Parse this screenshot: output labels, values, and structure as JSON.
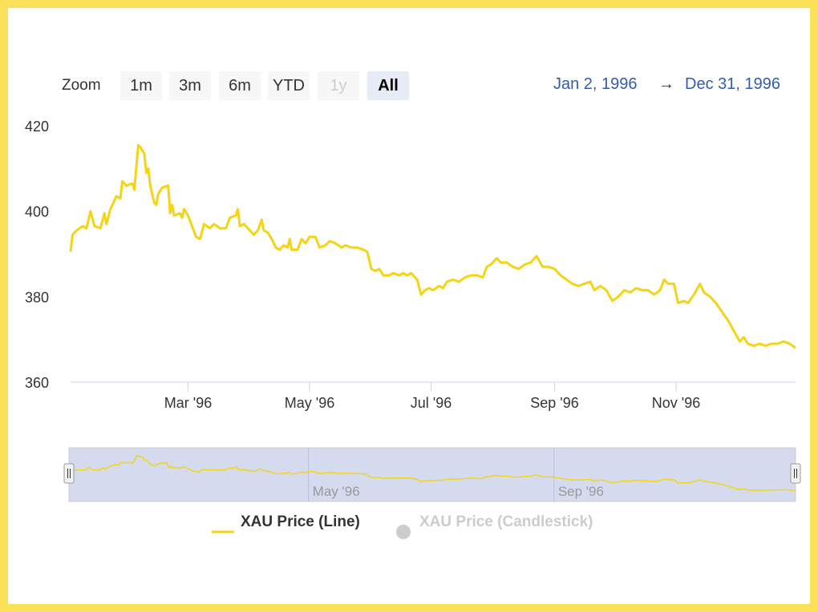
{
  "colors": {
    "line": "#f5d415",
    "axis": "#ccd6eb",
    "navigator_mask": "#d5dbee",
    "range_text": "#335cad",
    "legend_inactive": "#cccccc"
  },
  "range_selector": {
    "zoom_label": "Zoom",
    "buttons": [
      {
        "label": "1m",
        "state": "normal"
      },
      {
        "label": "3m",
        "state": "normal"
      },
      {
        "label": "6m",
        "state": "normal"
      },
      {
        "label": "YTD",
        "state": "normal"
      },
      {
        "label": "1y",
        "state": "disabled"
      },
      {
        "label": "All",
        "state": "active"
      }
    ],
    "from": "Jan 2, 1996",
    "arrow": "→",
    "to": "Dec 31, 1996"
  },
  "legend": [
    {
      "name": "XAU Price (Line)",
      "active": true,
      "symbol": "line"
    },
    {
      "name": "XAU Price (Candlestick)",
      "active": false,
      "symbol": "circle"
    }
  ],
  "navigator": {
    "tick_labels": [
      "May '96",
      "Sep '96"
    ]
  },
  "chart_data": {
    "type": "line",
    "xlim": [
      "1996-01-02",
      "1996-12-31"
    ],
    "ylim": [
      360,
      420
    ],
    "yticks": [
      360,
      380,
      400,
      420
    ],
    "xticks": [
      {
        "date": "1996-03-01",
        "label": "Mar '96"
      },
      {
        "date": "1996-05-01",
        "label": "May '96"
      },
      {
        "date": "1996-07-01",
        "label": "Jul '96"
      },
      {
        "date": "1996-09-01",
        "label": "Sep '96"
      },
      {
        "date": "1996-11-01",
        "label": "Nov '96"
      }
    ],
    "legend_position": "bottom",
    "series": [
      {
        "name": "XAU Price (Line)",
        "points": [
          [
            "1996-01-02",
            390.5
          ],
          [
            "1996-01-03",
            394.5
          ],
          [
            "1996-01-05",
            395.5
          ],
          [
            "1996-01-08",
            396.5
          ],
          [
            "1996-01-10",
            396.0
          ],
          [
            "1996-01-12",
            400.0
          ],
          [
            "1996-01-14",
            396.5
          ],
          [
            "1996-01-17",
            396.0
          ],
          [
            "1996-01-19",
            399.5
          ],
          [
            "1996-01-20",
            397.0
          ],
          [
            "1996-01-22",
            400.5
          ],
          [
            "1996-01-25",
            403.5
          ],
          [
            "1996-01-27",
            403.0
          ],
          [
            "1996-01-28",
            407.0
          ],
          [
            "1996-01-30",
            406.0
          ],
          [
            "1996-02-02",
            406.5
          ],
          [
            "1996-02-03",
            405.0
          ],
          [
            "1996-02-05",
            415.5
          ],
          [
            "1996-02-06",
            415.0
          ],
          [
            "1996-02-08",
            413.5
          ],
          [
            "1996-02-09",
            409.0
          ],
          [
            "1996-02-10",
            410.0
          ],
          [
            "1996-02-11",
            406.0
          ],
          [
            "1996-02-13",
            402.0
          ],
          [
            "1996-02-14",
            401.5
          ],
          [
            "1996-02-15",
            404.0
          ],
          [
            "1996-02-17",
            405.5
          ],
          [
            "1996-02-20",
            406.0
          ],
          [
            "1996-02-21",
            399.5
          ],
          [
            "1996-02-22",
            401.5
          ],
          [
            "1996-02-23",
            399.0
          ],
          [
            "1996-02-26",
            399.5
          ],
          [
            "1996-02-27",
            398.5
          ],
          [
            "1996-02-28",
            400.5
          ],
          [
            "1996-03-01",
            399.0
          ],
          [
            "1996-03-03",
            396.5
          ],
          [
            "1996-03-05",
            394.0
          ],
          [
            "1996-03-07",
            393.5
          ],
          [
            "1996-03-09",
            397.0
          ],
          [
            "1996-03-12",
            396.0
          ],
          [
            "1996-03-14",
            397.0
          ],
          [
            "1996-03-17",
            396.0
          ],
          [
            "1996-03-20",
            396.0
          ],
          [
            "1996-03-22",
            398.5
          ],
          [
            "1996-03-25",
            399.0
          ],
          [
            "1996-03-26",
            400.5
          ],
          [
            "1996-03-27",
            396.5
          ],
          [
            "1996-03-29",
            397.0
          ],
          [
            "1996-04-01",
            395.5
          ],
          [
            "1996-04-03",
            394.5
          ],
          [
            "1996-04-05",
            395.5
          ],
          [
            "1996-04-07",
            398.0
          ],
          [
            "1996-04-08",
            395.5
          ],
          [
            "1996-04-10",
            395.0
          ],
          [
            "1996-04-12",
            393.5
          ],
          [
            "1996-04-14",
            391.5
          ],
          [
            "1996-04-16",
            391.0
          ],
          [
            "1996-04-18",
            392.0
          ],
          [
            "1996-04-20",
            391.5
          ],
          [
            "1996-04-21",
            393.5
          ],
          [
            "1996-04-22",
            391.0
          ],
          [
            "1996-04-25",
            391.0
          ],
          [
            "1996-04-27",
            393.5
          ],
          [
            "1996-04-29",
            392.5
          ],
          [
            "1996-05-01",
            394.0
          ],
          [
            "1996-05-04",
            394.0
          ],
          [
            "1996-05-06",
            391.5
          ],
          [
            "1996-05-09",
            392.0
          ],
          [
            "1996-05-11",
            393.0
          ],
          [
            "1996-05-14",
            392.5
          ],
          [
            "1996-05-17",
            391.5
          ],
          [
            "1996-05-19",
            392.0
          ],
          [
            "1996-05-22",
            391.5
          ],
          [
            "1996-05-25",
            391.5
          ],
          [
            "1996-05-28",
            391.0
          ],
          [
            "1996-05-30",
            390.5
          ],
          [
            "1996-06-01",
            386.5
          ],
          [
            "1996-06-03",
            386.0
          ],
          [
            "1996-06-05",
            386.5
          ],
          [
            "1996-06-07",
            385.0
          ],
          [
            "1996-06-10",
            385.0
          ],
          [
            "1996-06-12",
            385.5
          ],
          [
            "1996-06-15",
            385.0
          ],
          [
            "1996-06-17",
            385.5
          ],
          [
            "1996-06-19",
            385.0
          ],
          [
            "1996-06-21",
            385.5
          ],
          [
            "1996-06-24",
            384.0
          ],
          [
            "1996-06-26",
            380.5
          ],
          [
            "1996-06-28",
            381.5
          ],
          [
            "1996-06-30",
            382.0
          ],
          [
            "1996-07-02",
            381.5
          ],
          [
            "1996-07-05",
            382.5
          ],
          [
            "1996-07-07",
            382.0
          ],
          [
            "1996-07-09",
            383.5
          ],
          [
            "1996-07-12",
            384.0
          ],
          [
            "1996-07-15",
            383.5
          ],
          [
            "1996-07-18",
            384.5
          ],
          [
            "1996-07-21",
            385.0
          ],
          [
            "1996-07-24",
            385.0
          ],
          [
            "1996-07-27",
            384.5
          ],
          [
            "1996-07-29",
            387.0
          ],
          [
            "1996-07-31",
            387.5
          ],
          [
            "1996-08-03",
            389.0
          ],
          [
            "1996-08-05",
            388.0
          ],
          [
            "1996-08-08",
            388.0
          ],
          [
            "1996-08-11",
            387.0
          ],
          [
            "1996-08-14",
            386.5
          ],
          [
            "1996-08-17",
            387.5
          ],
          [
            "1996-08-20",
            388.0
          ],
          [
            "1996-08-23",
            389.5
          ],
          [
            "1996-08-26",
            387.0
          ],
          [
            "1996-08-29",
            387.0
          ],
          [
            "1996-09-01",
            386.5
          ],
          [
            "1996-09-04",
            385.0
          ],
          [
            "1996-09-07",
            384.0
          ],
          [
            "1996-09-10",
            383.0
          ],
          [
            "1996-09-13",
            382.5
          ],
          [
            "1996-09-16",
            383.0
          ],
          [
            "1996-09-19",
            383.5
          ],
          [
            "1996-09-21",
            381.5
          ],
          [
            "1996-09-24",
            382.5
          ],
          [
            "1996-09-27",
            381.5
          ],
          [
            "1996-09-30",
            379.0
          ],
          [
            "1996-10-03",
            380.0
          ],
          [
            "1996-10-06",
            381.5
          ],
          [
            "1996-10-09",
            381.0
          ],
          [
            "1996-10-12",
            382.0
          ],
          [
            "1996-10-15",
            381.5
          ],
          [
            "1996-10-18",
            381.5
          ],
          [
            "1996-10-21",
            380.5
          ],
          [
            "1996-10-24",
            381.5
          ],
          [
            "1996-10-26",
            384.0
          ],
          [
            "1996-10-28",
            383.0
          ],
          [
            "1996-10-31",
            383.0
          ],
          [
            "1996-11-02",
            378.5
          ],
          [
            "1996-11-05",
            379.0
          ],
          [
            "1996-11-07",
            378.5
          ],
          [
            "1996-11-10",
            380.5
          ],
          [
            "1996-11-13",
            383.0
          ],
          [
            "1996-11-15",
            381.0
          ],
          [
            "1996-11-18",
            380.0
          ],
          [
            "1996-11-21",
            378.5
          ],
          [
            "1996-11-24",
            376.5
          ],
          [
            "1996-11-27",
            374.5
          ],
          [
            "1996-11-30",
            372.0
          ],
          [
            "1996-12-03",
            369.5
          ],
          [
            "1996-12-05",
            370.5
          ],
          [
            "1996-12-07",
            369.0
          ],
          [
            "1996-12-10",
            368.5
          ],
          [
            "1996-12-13",
            369.0
          ],
          [
            "1996-12-16",
            368.5
          ],
          [
            "1996-12-19",
            369.0
          ],
          [
            "1996-12-22",
            369.0
          ],
          [
            "1996-12-25",
            369.5
          ],
          [
            "1996-12-28",
            369.0
          ],
          [
            "1996-12-31",
            368.0
          ]
        ]
      }
    ]
  }
}
